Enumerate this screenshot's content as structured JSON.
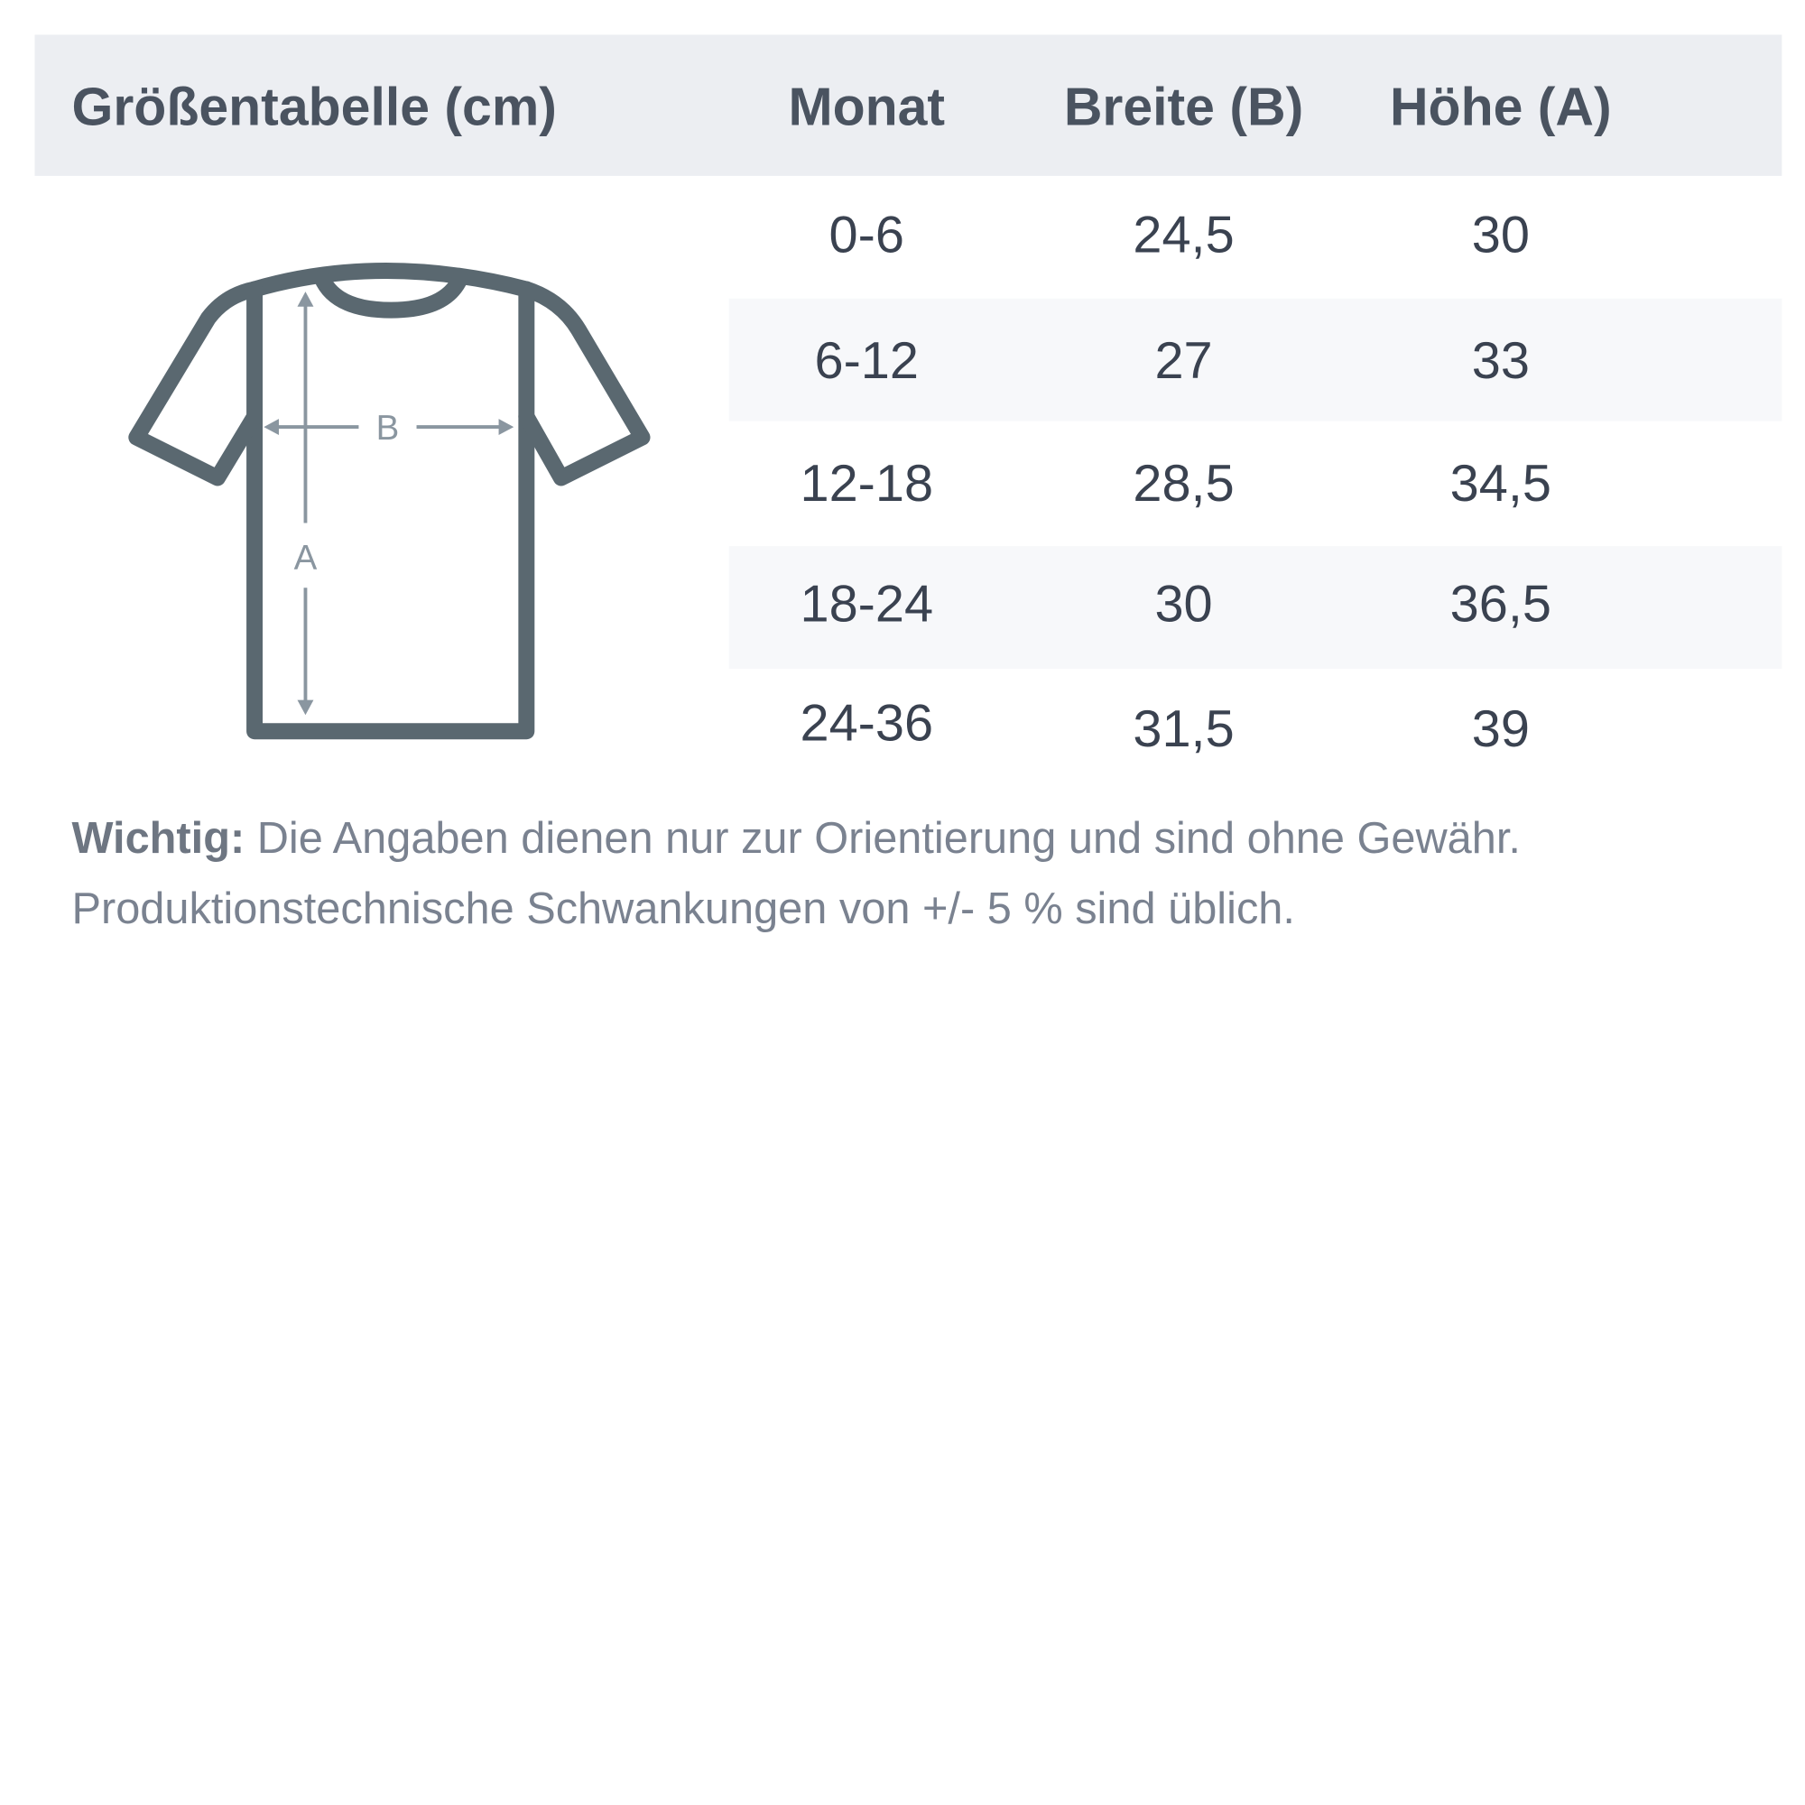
{
  "header": {
    "title": "Größentabelle (cm)",
    "columns": [
      "Monat",
      "Breite (B)",
      "Höhe (A)"
    ]
  },
  "rows": [
    {
      "month": "0-6",
      "width": "24,5",
      "height": "30"
    },
    {
      "month": "6-12",
      "width": "27",
      "height": "33"
    },
    {
      "month": "12-18",
      "width": "28,5",
      "height": "34,5"
    },
    {
      "month": "18-24",
      "width": "30",
      "height": "36,5"
    },
    {
      "month": "24-36",
      "width": "31,5",
      "height": "39"
    }
  ],
  "diagram": {
    "label_width": "B",
    "label_height": "A",
    "icon": "t-shirt-icon"
  },
  "note": {
    "label": "Wichtig:",
    "line1": " Die Angaben dienen nur zur Orientierung und sind ohne Gewähr.",
    "line2": "Produktionstechnische Schwankungen von +/- 5 % sind üblich."
  },
  "colors": {
    "header_bg": "#eceef2",
    "stripe_bg": "#f7f8fa",
    "shirt": "#5a6870",
    "arrow": "#8a96a0"
  }
}
